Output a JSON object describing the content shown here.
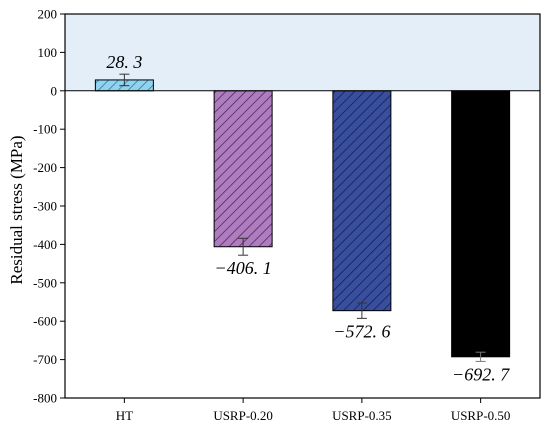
{
  "chart_data": {
    "type": "bar",
    "categories": [
      "HT",
      "USRP-0.20",
      "USRP-0.35",
      "USRP-0.50"
    ],
    "values": [
      28.3,
      -406.1,
      -572.6,
      -692.7
    ],
    "errors": [
      15,
      22,
      20,
      12
    ],
    "data_labels": [
      "28. 3",
      "−406. 1",
      "−572. 6",
      "−692. 7"
    ],
    "title": "",
    "xlabel": "",
    "ylabel": "Residual  stress (MPa)",
    "ylim": [
      -800,
      200
    ],
    "yticks": [
      200,
      100,
      0,
      -100,
      -200,
      -300,
      -400,
      -500,
      -600,
      -700,
      -800
    ],
    "ytick_labels": [
      "200",
      "100",
      "0",
      "-100",
      "-200",
      "-300",
      "-400",
      "-500",
      "-600",
      "-700",
      "-800"
    ],
    "colors": [
      "#8fd3f0",
      "#b07cc0",
      "#3a4e9e",
      "#000000"
    ],
    "positive_region_color": "#e3eef8",
    "hatched": [
      true,
      true,
      true,
      false
    ],
    "grid": false,
    "legend": "none"
  }
}
